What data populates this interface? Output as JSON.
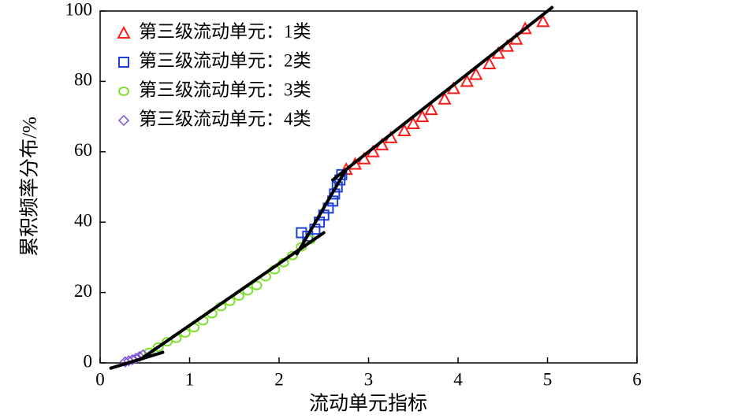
{
  "chart_data": {
    "type": "scatter",
    "x_label": "流动单元指标",
    "y_label": "累积频率分布/%",
    "xlim": [
      0,
      6
    ],
    "xticks": [
      0,
      1,
      2,
      3,
      4,
      5,
      6
    ],
    "ylim": [
      0,
      100
    ],
    "yticks": [
      0,
      20,
      40,
      60,
      80,
      100
    ],
    "legend": "upper-left",
    "series": [
      {
        "name": "第三级流动单元：1类",
        "color": "#ff1a1a",
        "marker": "triangle",
        "x": [
          2.75,
          2.85,
          2.95,
          3.05,
          3.15,
          3.25,
          3.4,
          3.5,
          3.6,
          3.7,
          3.85,
          3.95,
          4.1,
          4.2,
          4.35,
          4.45,
          4.55,
          4.65,
          4.75,
          4.95
        ],
        "values": [
          55,
          56.5,
          58,
          60,
          62,
          64,
          66,
          68,
          70,
          72,
          75,
          78,
          80,
          82,
          85,
          88,
          90,
          92,
          95,
          97
        ]
      },
      {
        "name": "第三级流动单元：2类",
        "color": "#1f3fd8",
        "marker": "square",
        "x": [
          2.25,
          2.32,
          2.4,
          2.45,
          2.5,
          2.55,
          2.6,
          2.62,
          2.65,
          2.68,
          2.7
        ],
        "values": [
          37,
          36,
          38,
          40,
          42,
          44,
          46,
          48,
          50,
          52,
          53.5
        ]
      },
      {
        "name": "第三级流动单元：3类",
        "color": "#7fe030",
        "marker": "circle",
        "x": [
          0.55,
          0.65,
          0.75,
          0.85,
          0.95,
          1.05,
          1.15,
          1.25,
          1.35,
          1.45,
          1.55,
          1.65,
          1.75,
          1.85,
          1.95,
          2.05,
          2.15,
          2.25,
          2.35
        ],
        "values": [
          3,
          4.5,
          6,
          7,
          8.5,
          10,
          12,
          14,
          16,
          17.5,
          19,
          20.5,
          22,
          24.5,
          26.5,
          28.5,
          30.5,
          33,
          35
        ]
      },
      {
        "name": "第三级流动单元：4类",
        "color": "#7b4fd0",
        "marker": "diamond",
        "x": [
          0.28,
          0.32,
          0.36,
          0.4,
          0.44,
          0.48
        ],
        "values": [
          0.3,
          0.6,
          0.9,
          1.3,
          1.8,
          2.3
        ]
      }
    ],
    "trend_lines": [
      {
        "x": [
          2.6,
          5.05
        ],
        "y": [
          52,
          101
        ]
      },
      {
        "x": [
          2.2,
          2.75
        ],
        "y": [
          31,
          55
        ]
      },
      {
        "x": [
          0.45,
          2.5
        ],
        "y": [
          1,
          37
        ]
      },
      {
        "x": [
          0.12,
          0.7
        ],
        "y": [
          -1.5,
          3
        ]
      }
    ]
  }
}
